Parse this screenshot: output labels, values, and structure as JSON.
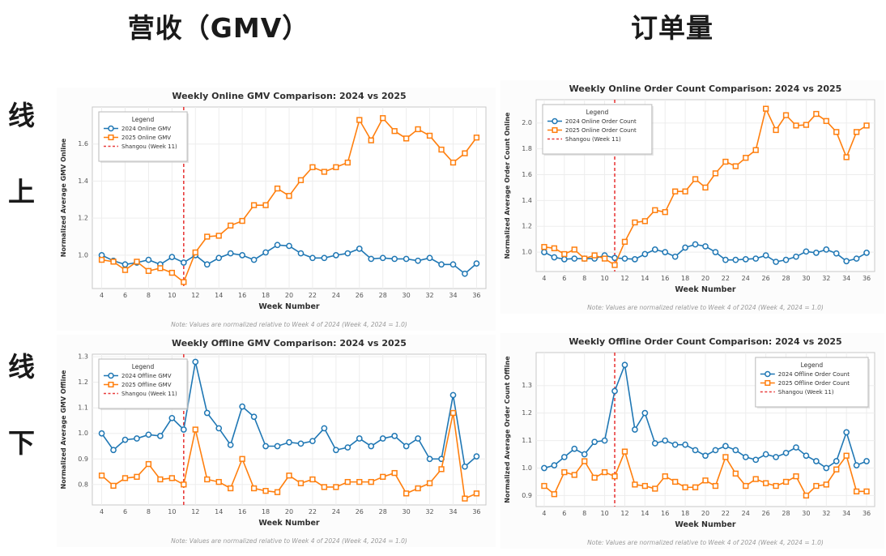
{
  "page": {
    "column_headers": [
      {
        "label": "营收（GMV）"
      },
      {
        "label": "订单量"
      }
    ],
    "row_headers": [
      {
        "chars": [
          "线",
          "上"
        ]
      },
      {
        "chars": [
          "线",
          "下"
        ]
      }
    ]
  },
  "colors": {
    "series_2024": "#1f77b4",
    "series_2025": "#ff7f0e",
    "event_line": "#e83d3d",
    "grid": "#ededed",
    "spine": "#c9c9c9",
    "plot_bg": "#ffffff"
  },
  "note": "Note: Values are normalized relative to Week 4 of 2024 (Week 4, 2024 = 1.0)",
  "chart_data": [
    {
      "id": "online-gmv",
      "type": "line",
      "title": "Weekly Online GMV Comparison: 2024 vs 2025",
      "xlabel": "Week Number",
      "ylabel": "Normalized Average GMV Online",
      "x": [
        4,
        5,
        6,
        7,
        8,
        9,
        10,
        11,
        12,
        13,
        14,
        15,
        16,
        17,
        18,
        19,
        20,
        21,
        22,
        23,
        24,
        25,
        26,
        27,
        28,
        29,
        30,
        31,
        32,
        33,
        34,
        35,
        36
      ],
      "xticks": [
        4,
        6,
        8,
        10,
        12,
        14,
        16,
        18,
        20,
        22,
        24,
        26,
        28,
        30,
        32,
        34,
        36
      ],
      "yticks": [
        1.0,
        1.2,
        1.4,
        1.6
      ],
      "ylim": [
        0.82,
        1.8
      ],
      "legend": {
        "title": "Legend",
        "position": "upper-left"
      },
      "vline": {
        "x": 11,
        "label": "Shangou (Week 11)"
      },
      "series": [
        {
          "name": "2024 Online GMV",
          "marker": "circle",
          "color_key": "series_2024",
          "values": [
            1.0,
            0.97,
            0.95,
            0.96,
            0.975,
            0.95,
            0.99,
            0.96,
            1.0,
            0.95,
            0.985,
            1.01,
            1.0,
            0.975,
            1.015,
            1.055,
            1.05,
            1.01,
            0.985,
            0.985,
            1.0,
            1.01,
            1.035,
            0.98,
            0.985,
            0.98,
            0.98,
            0.97,
            0.985,
            0.95,
            0.95,
            0.9,
            0.955
          ]
        },
        {
          "name": "2025 Online GMV",
          "marker": "square",
          "color_key": "series_2025",
          "values": [
            0.975,
            0.965,
            0.92,
            0.965,
            0.915,
            0.93,
            0.905,
            0.855,
            1.015,
            1.1,
            1.105,
            1.16,
            1.185,
            1.27,
            1.27,
            1.36,
            1.32,
            1.405,
            1.475,
            1.45,
            1.475,
            1.5,
            1.73,
            1.62,
            1.74,
            1.67,
            1.63,
            1.68,
            1.645,
            1.57,
            1.5,
            1.55,
            1.635
          ]
        }
      ]
    },
    {
      "id": "online-order-count",
      "type": "line",
      "title": "Weekly Online Order Count Comparison: 2024 vs 2025",
      "xlabel": "Week Number",
      "ylabel": "Normalized Average Order Count Online",
      "x": [
        4,
        5,
        6,
        7,
        8,
        9,
        10,
        11,
        12,
        13,
        14,
        15,
        16,
        17,
        18,
        19,
        20,
        21,
        22,
        23,
        24,
        25,
        26,
        27,
        28,
        29,
        30,
        31,
        32,
        33,
        34,
        35,
        36
      ],
      "xticks": [
        4,
        6,
        8,
        10,
        12,
        14,
        16,
        18,
        20,
        22,
        24,
        26,
        28,
        30,
        32,
        34,
        36
      ],
      "yticks": [
        1.0,
        1.2,
        1.4,
        1.6,
        1.8,
        2.0
      ],
      "ylim": [
        0.85,
        2.18
      ],
      "legend": {
        "title": "Legend",
        "position": "upper-left"
      },
      "vline": {
        "x": 11,
        "label": "Shangou (Week 11)"
      },
      "series": [
        {
          "name": "2024 Online Order Count",
          "marker": "circle",
          "color_key": "series_2024",
          "values": [
            1.0,
            0.96,
            0.945,
            0.95,
            0.95,
            0.95,
            0.975,
            0.955,
            0.95,
            0.945,
            0.985,
            1.02,
            1.0,
            0.965,
            1.035,
            1.06,
            1.045,
            1.0,
            0.94,
            0.94,
            0.945,
            0.95,
            0.975,
            0.925,
            0.94,
            0.965,
            1.005,
            0.995,
            1.02,
            0.99,
            0.93,
            0.95,
            0.995
          ]
        },
        {
          "name": "2025 Online Order Count",
          "marker": "square",
          "color_key": "series_2025",
          "values": [
            1.04,
            1.03,
            0.985,
            1.02,
            0.95,
            0.975,
            0.95,
            0.9,
            1.08,
            1.23,
            1.24,
            1.325,
            1.31,
            1.47,
            1.47,
            1.565,
            1.5,
            1.61,
            1.7,
            1.665,
            1.73,
            1.79,
            2.11,
            1.945,
            2.06,
            1.98,
            1.985,
            2.07,
            2.015,
            1.93,
            1.735,
            1.93,
            1.98
          ]
        }
      ]
    },
    {
      "id": "offline-gmv",
      "type": "line",
      "title": "Weekly Offline GMV Comparison: 2024 vs 2025",
      "xlabel": "Week Number",
      "ylabel": "Normalized Average GMV Offline",
      "x": [
        4,
        5,
        6,
        7,
        8,
        9,
        10,
        11,
        12,
        13,
        14,
        15,
        16,
        17,
        18,
        19,
        20,
        21,
        22,
        23,
        24,
        25,
        26,
        27,
        28,
        29,
        30,
        31,
        32,
        33,
        34,
        35,
        36
      ],
      "xticks": [
        4,
        6,
        8,
        10,
        12,
        14,
        16,
        18,
        20,
        22,
        24,
        26,
        28,
        30,
        32,
        34,
        36
      ],
      "yticks": [
        0.8,
        0.9,
        1.0,
        1.1,
        1.2,
        1.3
      ],
      "ylim": [
        0.72,
        1.31
      ],
      "legend": {
        "title": "Legend",
        "position": "upper-left"
      },
      "vline": {
        "x": 11,
        "label": "Shangou (Week 11)"
      },
      "series": [
        {
          "name": "2024 Offline GMV",
          "marker": "circle",
          "color_key": "series_2024",
          "values": [
            1.0,
            0.935,
            0.975,
            0.98,
            0.995,
            0.99,
            1.06,
            1.015,
            1.28,
            1.08,
            1.02,
            0.955,
            1.105,
            1.065,
            0.95,
            0.95,
            0.965,
            0.96,
            0.97,
            1.02,
            0.935,
            0.945,
            0.98,
            0.95,
            0.98,
            0.99,
            0.95,
            0.98,
            0.9,
            0.9,
            1.15,
            0.87,
            0.91
          ]
        },
        {
          "name": "2025 Offline GMV",
          "marker": "square",
          "color_key": "series_2025",
          "values": [
            0.835,
            0.795,
            0.825,
            0.83,
            0.88,
            0.82,
            0.825,
            0.8,
            1.015,
            0.82,
            0.81,
            0.785,
            0.9,
            0.785,
            0.775,
            0.77,
            0.835,
            0.805,
            0.82,
            0.79,
            0.79,
            0.81,
            0.81,
            0.81,
            0.83,
            0.845,
            0.765,
            0.785,
            0.805,
            0.86,
            1.08,
            0.745,
            0.765
          ]
        }
      ]
    },
    {
      "id": "offline-order-count",
      "type": "line",
      "title": "Weekly Offline Order Count Comparison: 2024 vs 2025",
      "xlabel": "Week Number",
      "ylabel": "Normalized Average Order Count Offline",
      "x": [
        4,
        5,
        6,
        7,
        8,
        9,
        10,
        11,
        12,
        13,
        14,
        15,
        16,
        17,
        18,
        19,
        20,
        21,
        22,
        23,
        24,
        25,
        26,
        27,
        28,
        29,
        30,
        31,
        32,
        33,
        34,
        35,
        36
      ],
      "xticks": [
        4,
        6,
        8,
        10,
        12,
        14,
        16,
        18,
        20,
        22,
        24,
        26,
        28,
        30,
        32,
        34,
        36
      ],
      "yticks": [
        0.9,
        1.0,
        1.1,
        1.2,
        1.3
      ],
      "ylim": [
        0.86,
        1.42
      ],
      "legend": {
        "title": "Legend",
        "position": "upper-right"
      },
      "vline": {
        "x": 11,
        "label": "Shangou (Week 11)"
      },
      "series": [
        {
          "name": "2024 Offline Order Count",
          "marker": "circle",
          "color_key": "series_2024",
          "values": [
            1.0,
            1.01,
            1.04,
            1.07,
            1.05,
            1.095,
            1.1,
            1.28,
            1.375,
            1.14,
            1.2,
            1.09,
            1.1,
            1.085,
            1.085,
            1.065,
            1.045,
            1.065,
            1.08,
            1.065,
            1.04,
            1.03,
            1.05,
            1.04,
            1.055,
            1.075,
            1.045,
            1.025,
            1.0,
            1.025,
            1.13,
            1.01,
            1.025
          ]
        },
        {
          "name": "2025 Offline Order Count",
          "marker": "square",
          "color_key": "series_2025",
          "values": [
            0.935,
            0.905,
            0.985,
            0.975,
            1.025,
            0.965,
            0.985,
            0.97,
            1.06,
            0.94,
            0.935,
            0.925,
            0.97,
            0.95,
            0.93,
            0.93,
            0.955,
            0.935,
            1.04,
            0.98,
            0.935,
            0.96,
            0.945,
            0.935,
            0.95,
            0.97,
            0.9,
            0.935,
            0.94,
            0.995,
            1.045,
            0.915,
            0.915
          ]
        }
      ]
    }
  ]
}
